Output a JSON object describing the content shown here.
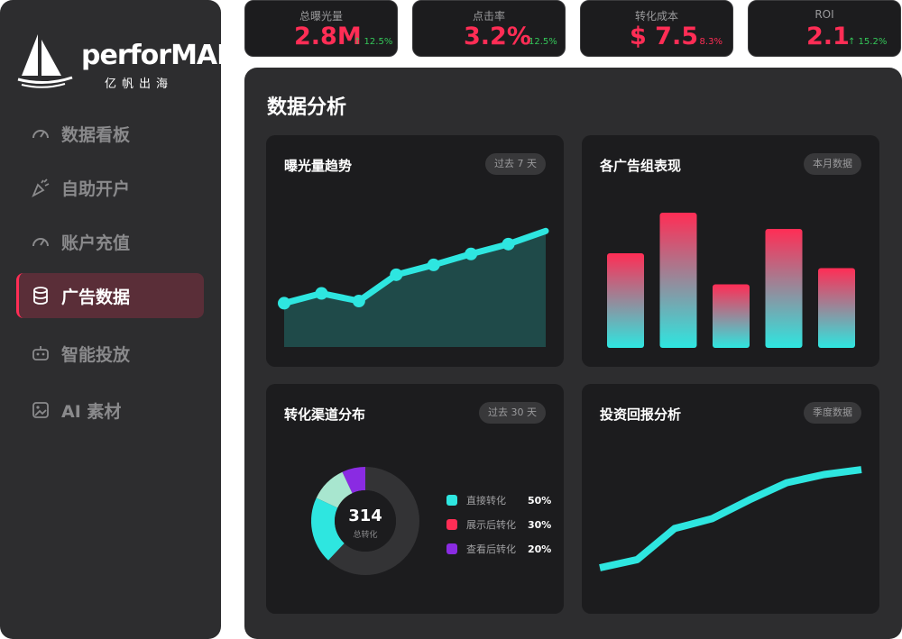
{
  "brand": {
    "name": "perforMAD",
    "tagline": "亿帆出海"
  },
  "sidebar": {
    "items": [
      {
        "label": "数据看板",
        "icon": "gauge-icon",
        "active": false
      },
      {
        "label": "自助开户",
        "icon": "party-popper-icon",
        "active": false
      },
      {
        "label": "账户充值",
        "icon": "gauge-icon",
        "active": false
      },
      {
        "label": "广告数据",
        "icon": "database-icon",
        "active": true
      },
      {
        "label": "智能投放",
        "icon": "robot-icon",
        "active": false
      },
      {
        "label": "AI 素材",
        "icon": "image-file-icon",
        "active": false
      }
    ]
  },
  "stats": [
    {
      "label": "总曝光量",
      "value": "2.8M",
      "change": "↑ 12.5%",
      "direction": "up"
    },
    {
      "label": "点击率",
      "value": "3.2%",
      "change": "12.5%",
      "direction": "up"
    },
    {
      "label": "转化成本",
      "value": "$ 7.5",
      "change": "↓ 8.3%",
      "direction": "down"
    },
    {
      "label": "ROI",
      "value": "2.1",
      "change": "↑ 15.2%",
      "direction": "up"
    }
  ],
  "main": {
    "title": "数据分析"
  },
  "cards": {
    "exposure": {
      "title": "曝光量趋势",
      "badge": "过去 7 天"
    },
    "adgroups": {
      "title": "各广告组表现",
      "badge": "本月数据"
    },
    "channels": {
      "title": "转化渠道分布",
      "badge": "过去 30 天",
      "total": "314",
      "total_label": "总转化"
    },
    "roi": {
      "title": "投资回报分析",
      "badge": "季度数据"
    }
  },
  "colors": {
    "accent": "#ff2d55",
    "teal": "#2ee6e0",
    "up": "#34c759",
    "purple": "#8a2be2",
    "mint": "#a8e6cf"
  },
  "chart_data": [
    {
      "type": "area",
      "title": "曝光量趋势",
      "x": [
        1,
        2,
        3,
        4,
        5,
        6,
        7,
        8
      ],
      "values": [
        40,
        49,
        42,
        66,
        75,
        85,
        94,
        106
      ],
      "ylim": [
        0,
        140
      ]
    },
    {
      "type": "bar",
      "title": "各广告组表现",
      "values": [
        70,
        100,
        47,
        88,
        59
      ],
      "ylim": [
        0,
        100
      ]
    },
    {
      "type": "pie",
      "title": "转化渠道分布",
      "slices": [
        {
          "name": "直接转化",
          "value": 50,
          "color": "#2ee6e0"
        },
        {
          "name": "展示后转化",
          "value": 30,
          "color": "#ff2d55"
        },
        {
          "name": "查看后转化",
          "value": 20,
          "color": "#8a2be2"
        }
      ],
      "labels_pct": [
        "50%",
        "30%",
        "20%"
      ]
    },
    {
      "type": "line",
      "title": "投资回报分析",
      "x": [
        1,
        2,
        3,
        4,
        5,
        6,
        7,
        8
      ],
      "values": [
        0,
        10,
        48,
        60,
        83,
        104,
        114,
        120
      ],
      "ylim": [
        0,
        130
      ]
    }
  ]
}
